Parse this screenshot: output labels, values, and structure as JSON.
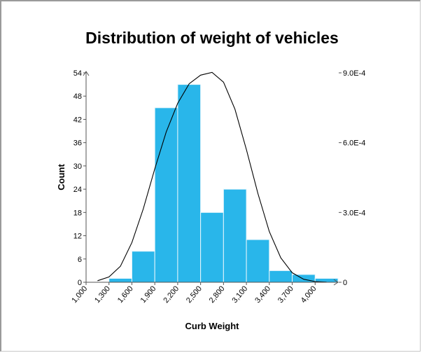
{
  "chart_data": {
    "type": "bar",
    "title": "Distribution of weight of vehicles",
    "xlabel": "Curb Weight",
    "ylabel": "Count",
    "x_ticks": [
      "1,000",
      "1,300",
      "1,600",
      "1,900",
      "2,200",
      "2,500",
      "2,800",
      "3,100",
      "3,400",
      "3,700",
      "4,000"
    ],
    "y_ticks": [
      "0",
      "6",
      "12",
      "18",
      "24",
      "30",
      "36",
      "42",
      "48",
      "54"
    ],
    "y2_ticks": [
      "0",
      "3.0E-4",
      "6.0E-4",
      "9.0E-4"
    ],
    "xlim": [
      1000,
      4300
    ],
    "ylim": [
      0,
      54
    ],
    "y2lim": [
      0,
      0.0009
    ],
    "bin_width": 300,
    "bins": [
      {
        "start": 1300,
        "end": 1600,
        "count": 1
      },
      {
        "start": 1600,
        "end": 1900,
        "count": 8
      },
      {
        "start": 1900,
        "end": 2200,
        "count": 45
      },
      {
        "start": 2200,
        "end": 2500,
        "count": 51
      },
      {
        "start": 2500,
        "end": 2800,
        "count": 18
      },
      {
        "start": 2800,
        "end": 3100,
        "count": 24
      },
      {
        "start": 3100,
        "end": 3400,
        "count": 11
      },
      {
        "start": 3400,
        "end": 3700,
        "count": 3
      },
      {
        "start": 3700,
        "end": 4000,
        "count": 2
      },
      {
        "start": 4000,
        "end": 4300,
        "count": 1
      }
    ],
    "density_curve": {
      "x": [
        1150,
        1300,
        1450,
        1600,
        1750,
        1900,
        2050,
        2200,
        2350,
        2500,
        2650,
        2800,
        2950,
        3100,
        3250,
        3400,
        3550,
        3700,
        3850,
        4000,
        4150
      ],
      "y": [
        6.6e-06,
        2.3e-05,
        6.9e-05,
        0.000171,
        0.000316,
        0.000488,
        0.000646,
        0.000769,
        0.000853,
        0.00089,
        0.000902,
        0.00086,
        0.000744,
        0.00057,
        0.000382,
        0.000218,
        0.000105,
        4.1e-05,
        1.3e-05,
        3.1e-06,
        6e-07
      ]
    },
    "colors": {
      "bar_fill": "#29b6ea",
      "bar_stroke": "#e8f6fc",
      "curve": "#000000",
      "axis": "#555555"
    },
    "grid": false,
    "legend": "none"
  }
}
